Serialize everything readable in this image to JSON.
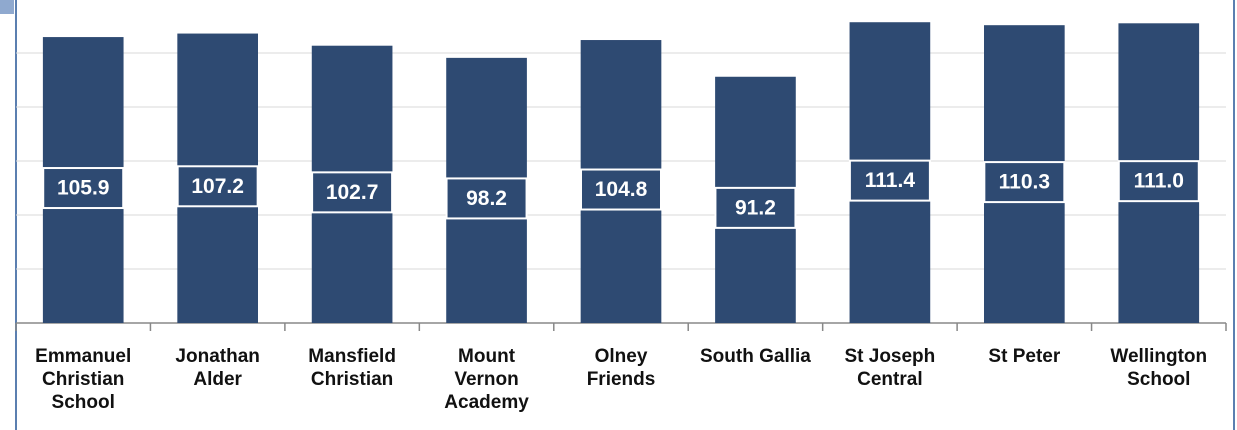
{
  "chart_data": {
    "type": "bar",
    "categories": [
      "Emmanuel Christian School",
      "Jonathan Alder",
      "Mansfield Christian",
      "Mount Vernon Academy",
      "Olney Friends",
      "South Gallia",
      "St Joseph Central",
      "St Peter",
      "Wellington School"
    ],
    "values": [
      105.9,
      107.2,
      102.7,
      98.2,
      104.8,
      91.2,
      111.4,
      110.3,
      111.0
    ],
    "value_labels": [
      "105.9",
      "107.2",
      "102.7",
      "98.2",
      "104.8",
      "91.2",
      "111.4",
      "110.3",
      "111.0"
    ],
    "color": "#2e4a72",
    "ylim": [
      0,
      120
    ],
    "yticks": [
      0,
      20,
      40,
      60,
      80,
      100,
      120
    ],
    "grid": true
  }
}
